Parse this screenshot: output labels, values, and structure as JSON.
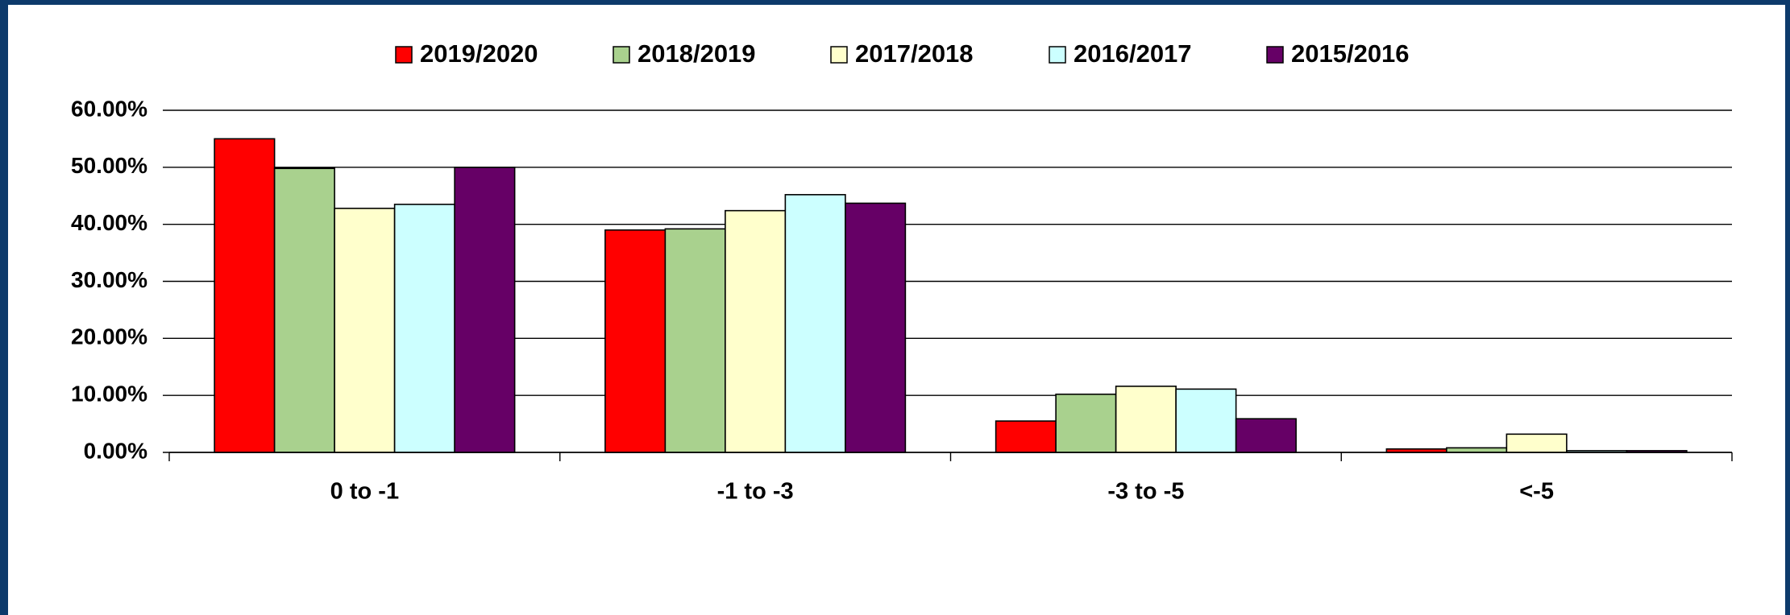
{
  "chart_data": {
    "type": "bar",
    "categories": [
      "0 to -1",
      "-1 to -3",
      "-3 to -5",
      "<-5"
    ],
    "series": [
      {
        "name": "2019/2020",
        "color": "#ff0000",
        "values": [
          55.0,
          39.0,
          5.5,
          0.6
        ]
      },
      {
        "name": "2018/2019",
        "color": "#a9d18e",
        "values": [
          49.8,
          39.2,
          10.2,
          0.8
        ]
      },
      {
        "name": "2017/2018",
        "color": "#ffffcc",
        "values": [
          42.8,
          42.4,
          11.6,
          3.2
        ]
      },
      {
        "name": "2016/2017",
        "color": "#ccffff",
        "values": [
          43.5,
          45.2,
          11.1,
          0.3
        ]
      },
      {
        "name": "2015/2016",
        "color": "#660066",
        "values": [
          50.0,
          43.7,
          5.9,
          0.3
        ]
      }
    ],
    "ylim": [
      0,
      60
    ],
    "yticks": [
      {
        "value": 0,
        "label": "0.00%"
      },
      {
        "value": 10,
        "label": "10.00%"
      },
      {
        "value": 20,
        "label": "20.00%"
      },
      {
        "value": 30,
        "label": "30.00%"
      },
      {
        "value": 40,
        "label": "40.00%"
      },
      {
        "value": 50,
        "label": "50.00%"
      },
      {
        "value": 60,
        "label": "60.00%"
      }
    ],
    "grid": true,
    "legend": "top"
  }
}
